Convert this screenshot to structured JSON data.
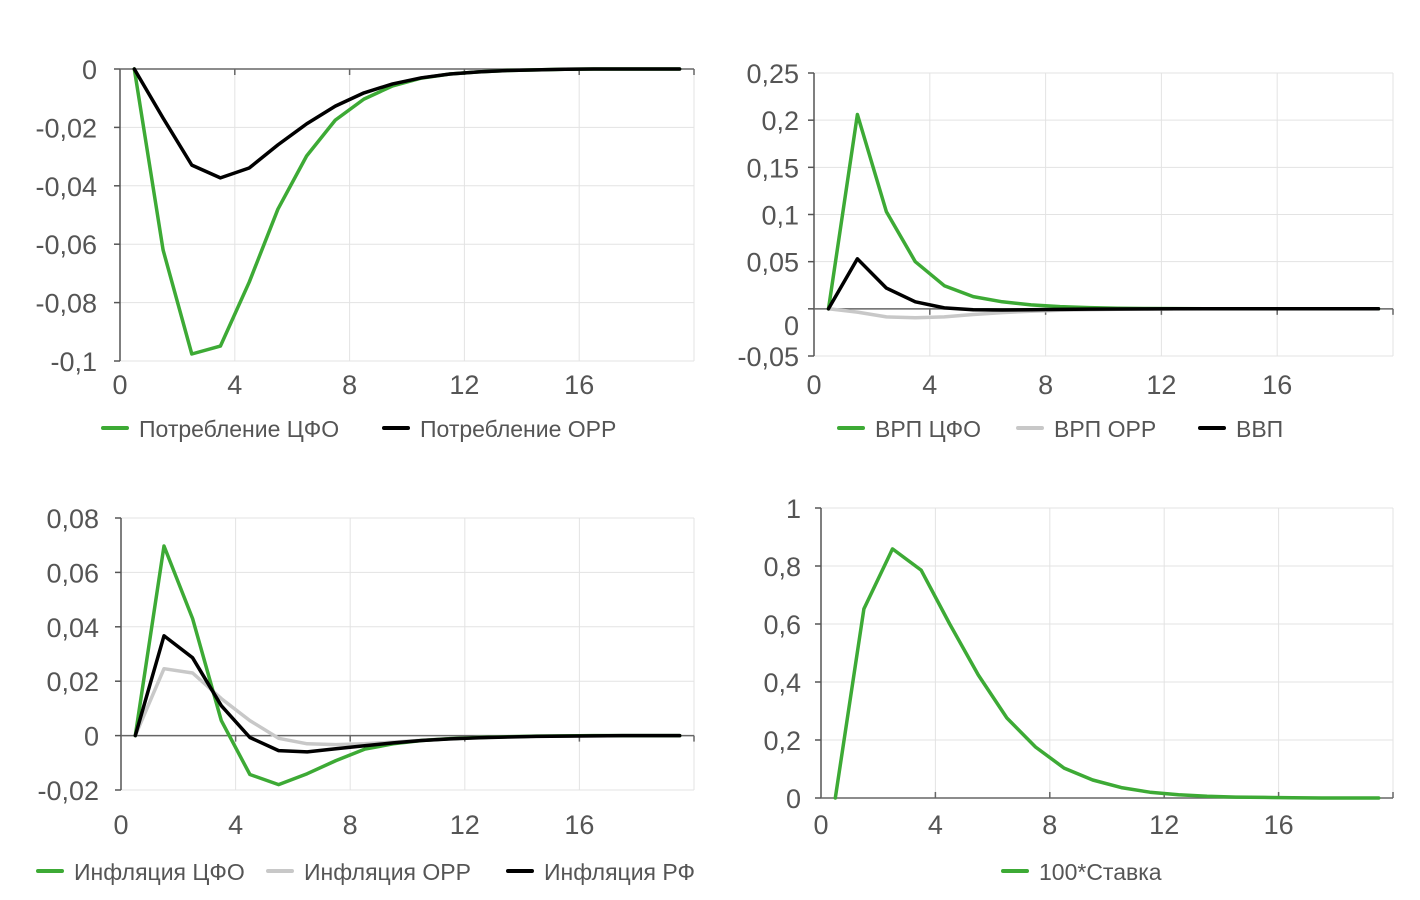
{
  "colors": {
    "green": "#3DAA35",
    "gray": "#C8C8C8",
    "black": "#000000",
    "text": "#555555",
    "grid": "#E3E3E3"
  },
  "chart_data": [
    {
      "id": "consumption",
      "type": "line",
      "title": "",
      "xlabel": "",
      "ylabel": "",
      "xlim": [
        0,
        20
      ],
      "ylim": [
        -0.1,
        0
      ],
      "x_ticks": [
        0,
        4,
        8,
        12,
        16
      ],
      "x_tick_labels": [
        "0",
        "4",
        "8",
        "12",
        "16"
      ],
      "y_ticks": [
        0,
        -0.02,
        -0.04,
        -0.06,
        -0.08,
        -0.1
      ],
      "y_tick_labels": [
        "0",
        "-0,02",
        "-0,04",
        "-0,06",
        "-0,08",
        "-0,1"
      ],
      "grid": true,
      "legend_position": "bottom",
      "x": [
        0.5,
        1.5,
        2.5,
        3.5,
        4.5,
        5.5,
        6.5,
        7.5,
        8.5,
        9.5,
        10.5,
        11.5,
        12.5,
        13.5,
        14.5,
        15.5,
        16.5,
        17.5,
        18.5,
        19.5
      ],
      "series": [
        {
          "name": "Потребление ЦФО",
          "color": "green",
          "values": [
            0,
            -0.062,
            -0.0976,
            -0.0949,
            -0.073,
            -0.048,
            -0.0298,
            -0.0175,
            -0.0103,
            -0.0058,
            -0.0031,
            -0.0017,
            -0.001,
            -0.0005,
            -0.0003,
            -0.0001,
            0,
            0,
            0,
            0
          ]
        },
        {
          "name": "Потребление ОРР",
          "color": "black",
          "values": [
            0,
            -0.0168,
            -0.0329,
            -0.0373,
            -0.0339,
            -0.026,
            -0.0188,
            -0.0127,
            -0.0082,
            -0.0051,
            -0.003,
            -0.0017,
            -0.001,
            -0.0005,
            -0.0003,
            -0.0001,
            0,
            0,
            0,
            0
          ]
        }
      ]
    },
    {
      "id": "grp",
      "type": "line",
      "title": "",
      "xlabel": "",
      "ylabel": "",
      "xlim": [
        0,
        20
      ],
      "ylim": [
        -0.05,
        0.25
      ],
      "x_ticks": [
        0,
        4,
        8,
        12,
        16
      ],
      "x_tick_labels": [
        "0",
        "4",
        "8",
        "12",
        "16"
      ],
      "y_ticks": [
        0.25,
        0.2,
        0.15,
        0.1,
        0.05,
        0,
        -0.05
      ],
      "y_tick_labels": [
        "0,25",
        "0,2",
        "0,15",
        "0,1",
        "0,05",
        "0",
        "-0,05"
      ],
      "grid": true,
      "legend_position": "bottom",
      "x": [
        0.5,
        1.5,
        2.5,
        3.5,
        4.5,
        5.5,
        6.5,
        7.5,
        8.5,
        9.5,
        10.5,
        11.5,
        12.5,
        13.5,
        14.5,
        15.5,
        16.5,
        17.5,
        18.5,
        19.5
      ],
      "series": [
        {
          "name": "ВРП ЦФО",
          "color": "green",
          "values": [
            0,
            0.206,
            0.103,
            0.05,
            0.0245,
            0.013,
            0.0075,
            0.0042,
            0.0024,
            0.0013,
            0.0007,
            0.0004,
            0.0002,
            0.0001,
            0,
            0,
            0,
            0,
            0,
            0
          ]
        },
        {
          "name": "ВРП ОРР",
          "color": "gray",
          "values": [
            0,
            -0.0035,
            -0.0085,
            -0.0095,
            -0.0085,
            -0.006,
            -0.004,
            -0.0025,
            -0.0015,
            -0.0009,
            -0.0005,
            -0.0003,
            -0.0001,
            0,
            0,
            0,
            0,
            0,
            0,
            0
          ]
        },
        {
          "name": "ВВП",
          "color": "black",
          "values": [
            0,
            0.053,
            0.022,
            0.0075,
            0.001,
            -0.001,
            -0.0012,
            -0.0009,
            -0.0006,
            -0.0003,
            -0.0002,
            -0.0001,
            0,
            0,
            0,
            0,
            0,
            0,
            0,
            0
          ]
        }
      ]
    },
    {
      "id": "inflation",
      "type": "line",
      "title": "",
      "xlabel": "",
      "ylabel": "",
      "xlim": [
        0,
        20
      ],
      "ylim": [
        -0.02,
        0.08
      ],
      "x_ticks": [
        0,
        4,
        8,
        12,
        16
      ],
      "x_tick_labels": [
        "0",
        "4",
        "8",
        "12",
        "16"
      ],
      "y_ticks": [
        0.08,
        0.06,
        0.04,
        0.02,
        0,
        -0.02
      ],
      "y_tick_labels": [
        "0,08",
        "0,06",
        "0,04",
        "0,02",
        "0",
        "-0,02"
      ],
      "grid": true,
      "legend_position": "bottom",
      "x": [
        0.5,
        1.5,
        2.5,
        3.5,
        4.5,
        5.5,
        6.5,
        7.5,
        8.5,
        9.5,
        10.5,
        11.5,
        12.5,
        13.5,
        14.5,
        15.5,
        16.5,
        17.5,
        18.5,
        19.5
      ],
      "series": [
        {
          "name": "Инфляция ЦФО",
          "color": "green",
          "values": [
            0,
            0.0697,
            0.043,
            0.0055,
            -0.0143,
            -0.018,
            -0.014,
            -0.0092,
            -0.005,
            -0.003,
            -0.0018,
            -0.0011,
            -0.0007,
            -0.0004,
            -0.0002,
            -0.0001,
            0,
            0,
            0,
            0
          ]
        },
        {
          "name": "Инфляция ОРР",
          "color": "gray",
          "values": [
            0,
            0.0246,
            0.023,
            0.0136,
            0.0055,
            -0.001,
            -0.003,
            -0.0033,
            -0.003,
            -0.0024,
            -0.0017,
            -0.0011,
            -0.0007,
            -0.0004,
            -0.0002,
            -0.0001,
            0,
            0,
            0,
            0
          ]
        },
        {
          "name": "Инфляция РФ",
          "color": "black",
          "values": [
            0,
            0.0367,
            0.0286,
            0.011,
            -0.0007,
            -0.0055,
            -0.006,
            -0.0048,
            -0.0037,
            -0.0027,
            -0.0018,
            -0.0012,
            -0.0008,
            -0.0005,
            -0.0003,
            -0.0002,
            -0.0001,
            0,
            0,
            0
          ]
        }
      ]
    },
    {
      "id": "rate",
      "type": "line",
      "title": "",
      "xlabel": "",
      "ylabel": "",
      "xlim": [
        0,
        20
      ],
      "ylim": [
        0,
        1
      ],
      "x_ticks": [
        0,
        4,
        8,
        12,
        16
      ],
      "x_tick_labels": [
        "0",
        "4",
        "8",
        "12",
        "16"
      ],
      "y_ticks": [
        1,
        0.8,
        0.6,
        0.4,
        0.2,
        0
      ],
      "y_tick_labels": [
        "1",
        "0,8",
        "0,6",
        "0,4",
        "0,2",
        "0"
      ],
      "grid": true,
      "legend_position": "bottom",
      "x": [
        0.5,
        1.5,
        2.5,
        3.5,
        4.5,
        5.5,
        6.5,
        7.5,
        8.5,
        9.5,
        10.5,
        11.5,
        12.5,
        13.5,
        14.5,
        15.5,
        16.5,
        17.5,
        18.5,
        19.5
      ],
      "series": [
        {
          "name": "100*Ставка",
          "color": "green",
          "values": [
            0,
            0.652,
            0.859,
            0.786,
            0.6,
            0.424,
            0.276,
            0.176,
            0.103,
            0.062,
            0.036,
            0.02,
            0.011,
            0.006,
            0.003,
            0.002,
            0.001,
            0,
            0,
            0
          ]
        }
      ]
    }
  ]
}
